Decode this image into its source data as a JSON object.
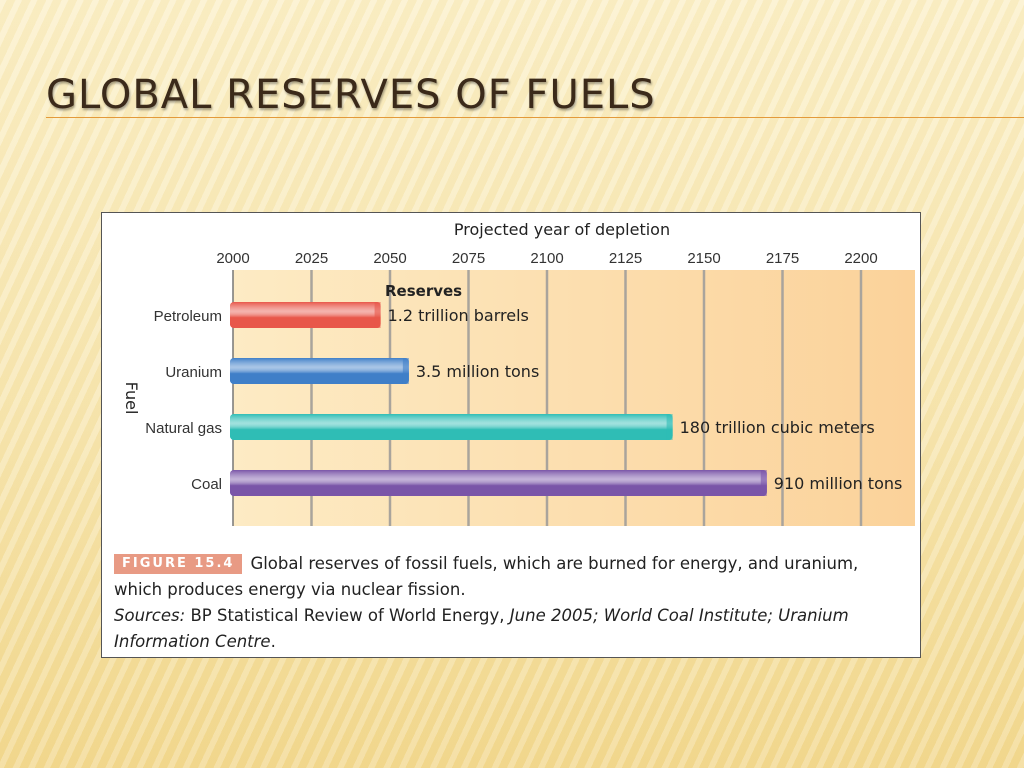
{
  "slide": {
    "title": "GLOBAL RESERVES OF FUELS"
  },
  "chart_data": {
    "type": "bar",
    "orientation": "horizontal",
    "title": "Projected year of depletion",
    "xlabel": "Projected year of depletion",
    "ylabel": "Fuel",
    "xlim": [
      2000,
      2218
    ],
    "x_ticks": [
      2000,
      2025,
      2050,
      2075,
      2100,
      2125,
      2150,
      2175,
      2200
    ],
    "grid": true,
    "reserves_header": "Reserves",
    "categories": [
      "Petroleum",
      "Uranium",
      "Natural gas",
      "Coal"
    ],
    "values": [
      2047,
      2056,
      2140,
      2170
    ],
    "bar_labels": [
      "1.2 trillion barrels",
      "3.5 million tons",
      "180 trillion cubic meters",
      "910 million tons"
    ],
    "colors": [
      "#e8574a",
      "#3f7fc8",
      "#2fbdb5",
      "#7a55a8"
    ],
    "plot_background": "#fbd9a0"
  },
  "caption": {
    "badge": "FIGURE 15.4",
    "text": "Global reserves of fossil fuels, which are burned for energy, and uranium, which produces energy via nuclear fission.",
    "sources_label": "Sources:",
    "source_1": "BP Statistical Review of World Energy,",
    "source_2": "June 2005; World Coal Institute; Uranium Information Centre",
    "end": "."
  }
}
